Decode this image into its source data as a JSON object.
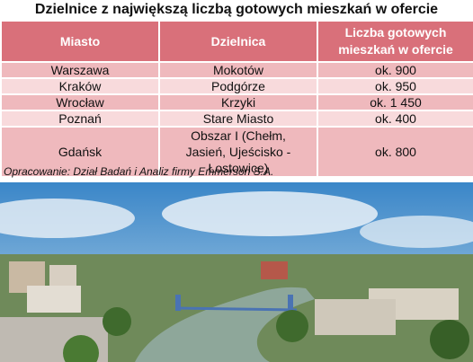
{
  "header": {
    "title": "Dzielnice z największą liczbą gotowych mieszkań w ofercie"
  },
  "table": {
    "columns": [
      "Miasto",
      "Dzielnica",
      "Liczba gotowych mieszkań w ofercie"
    ],
    "rows": [
      [
        "Warszawa",
        "Mokotów",
        "ok. 900"
      ],
      [
        "Kraków",
        "Podgórze",
        "ok. 950"
      ],
      [
        "Wrocław",
        "Krzyki",
        "ok. 1 450"
      ],
      [
        "Poznań",
        "Stare Miasto",
        "ok. 400"
      ],
      [
        "Gdańsk",
        "Obszar I (Chełm, Jasień, Ujeścisko - Łostowice)",
        "ok. 800"
      ]
    ]
  },
  "source": "Opracowanie: Dział Badań i Analiz firmy Emmerson S.A."
}
